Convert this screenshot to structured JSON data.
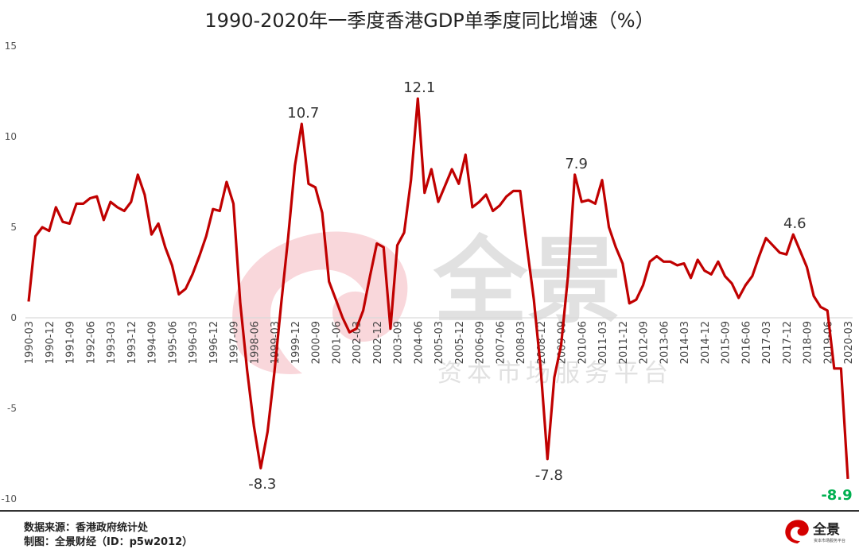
{
  "chart_data": {
    "type": "line",
    "title": "1990-2020年一季度香港GDP单季度同比增速（%）",
    "xlabel": "",
    "ylabel": "",
    "ylim": [
      -10,
      15
    ],
    "yticks": [
      "15",
      "10",
      "5",
      "0",
      "-5",
      "-10"
    ],
    "ytick_values": [
      15,
      10,
      5,
      0,
      -5,
      -10
    ],
    "grid": false,
    "frequency": "quarterly",
    "tick_labels": [
      "1990-03",
      "1990-12",
      "1991-09",
      "1992-06",
      "1993-03",
      "1993-12",
      "1994-09",
      "1995-06",
      "1996-03",
      "1996-12",
      "1997-09",
      "1998-06",
      "1999-03",
      "1999-12",
      "2000-09",
      "2001-06",
      "2002-03",
      "2002-12",
      "2003-09",
      "2004-06",
      "2005-03",
      "2005-12",
      "2006-09",
      "2007-06",
      "2008-03",
      "2008-12",
      "2009-09",
      "2010-06",
      "2011-03",
      "2011-12",
      "2012-09",
      "2013-06",
      "2014-03",
      "2014-12",
      "2015-09",
      "2016-06",
      "2017-03",
      "2017-12",
      "2018-09",
      "2019-06",
      "2020-03"
    ],
    "series": [
      {
        "name": "香港GDP单季度同比增速",
        "color": "#c00000",
        "values": [
          0.9,
          4.5,
          5.0,
          4.8,
          6.1,
          5.3,
          5.2,
          6.3,
          6.3,
          6.6,
          6.7,
          5.4,
          6.4,
          6.1,
          5.9,
          6.4,
          7.9,
          6.8,
          4.6,
          5.2,
          3.9,
          2.9,
          1.3,
          1.6,
          2.4,
          3.4,
          4.5,
          6.0,
          5.9,
          7.5,
          6.3,
          0.8,
          -2.9,
          -6.0,
          -8.3,
          -6.3,
          -3.0,
          0.8,
          4.4,
          8.4,
          10.7,
          7.4,
          7.2,
          5.8,
          2.0,
          1.0,
          0.0,
          -0.8,
          -0.6,
          0.4,
          2.3,
          4.1,
          3.9,
          -0.6,
          4.0,
          4.7,
          7.6,
          12.1,
          6.9,
          8.2,
          6.4,
          7.3,
          8.2,
          7.4,
          9.0,
          6.1,
          6.4,
          6.8,
          5.9,
          6.2,
          6.7,
          7.0,
          7.0,
          3.9,
          1.0,
          -2.8,
          -7.8,
          -3.3,
          -1.5,
          2.3,
          7.9,
          6.4,
          6.5,
          6.3,
          7.6,
          5.0,
          3.9,
          3.0,
          0.8,
          1.0,
          1.8,
          3.1,
          3.4,
          3.1,
          3.1,
          2.9,
          3.0,
          2.2,
          3.2,
          2.6,
          2.4,
          3.1,
          2.3,
          1.9,
          1.1,
          1.8,
          2.3,
          3.4,
          4.4,
          4.0,
          3.6,
          3.5,
          4.6,
          3.7,
          2.8,
          1.2,
          0.6,
          0.4,
          -2.8,
          -2.8,
          -8.9
        ]
      }
    ],
    "annotations": [
      {
        "index": 34,
        "label": "-8.3",
        "position": "below",
        "color": "#333333"
      },
      {
        "index": 40,
        "label": "10.7",
        "position": "above",
        "color": "#333333"
      },
      {
        "index": 57,
        "label": "12.1",
        "position": "above",
        "color": "#333333"
      },
      {
        "index": 76,
        "label": "-7.8",
        "position": "below",
        "color": "#333333"
      },
      {
        "index": 80,
        "label": "7.9",
        "position": "above",
        "color": "#333333"
      },
      {
        "index": 112,
        "label": "4.6",
        "position": "above",
        "color": "#333333"
      },
      {
        "index": 120,
        "label": "-8.9",
        "position": "below",
        "color": "#00b050",
        "bold": true
      }
    ]
  },
  "footer": {
    "source": "数据来源：香港政府统计处",
    "made_by": "制图：全景财经（ID：p5w2012）"
  },
  "watermark": {
    "brand": "全景",
    "slogan": "资本市场服务平台"
  },
  "logo": {
    "brand": "全景",
    "slogan": "资本市场服务平台"
  },
  "colors": {
    "line": "#c00000",
    "highlight": "#00b050",
    "watermark_red": "#f8d0d5",
    "watermark_gray": "#dcdcdc"
  }
}
